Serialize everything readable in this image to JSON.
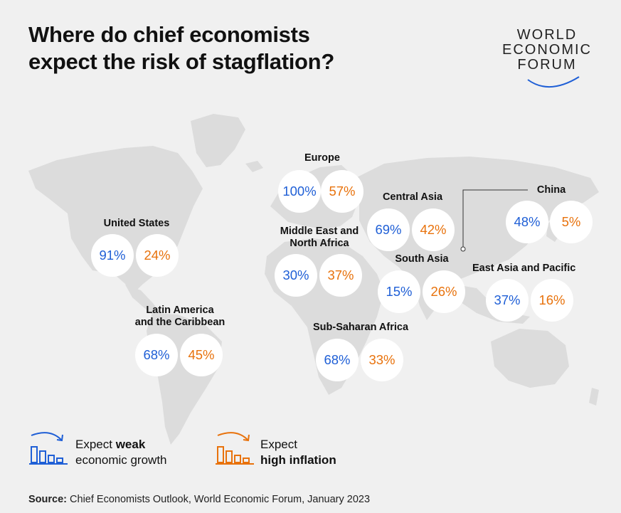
{
  "header": {
    "title_line1": "Where do chief economists",
    "title_line2": "expect the risk of stagflation?"
  },
  "logo": {
    "line1": "WORLD",
    "line2": "ECONOMIC",
    "line3": "FORUM"
  },
  "colors": {
    "growth": "#1f5fd6",
    "inflation": "#e8720c",
    "land": "#dcdcdc",
    "background": "#f0f0f0"
  },
  "regions": [
    {
      "id": "europe",
      "name": "Europe",
      "growth": "100%",
      "inflation": "57%"
    },
    {
      "id": "central-asia",
      "name": "Central Asia",
      "growth": "69%",
      "inflation": "42%"
    },
    {
      "id": "china",
      "name": "China",
      "growth": "48%",
      "inflation": "5%"
    },
    {
      "id": "united-states",
      "name": "United States",
      "growth": "91%",
      "inflation": "24%"
    },
    {
      "id": "mena",
      "name": "Middle East and\nNorth Africa",
      "growth": "30%",
      "inflation": "37%"
    },
    {
      "id": "south-asia",
      "name": "South Asia",
      "growth": "15%",
      "inflation": "26%"
    },
    {
      "id": "east-asia-pacific",
      "name": "East Asia and Pacific",
      "growth": "37%",
      "inflation": "16%"
    },
    {
      "id": "latin-america",
      "name": "Latin America\nand the Caribbean",
      "growth": "68%",
      "inflation": "45%"
    },
    {
      "id": "sub-saharan-africa",
      "name": "Sub-Saharan Africa",
      "growth": "68%",
      "inflation": "33%"
    }
  ],
  "legend": {
    "growth": {
      "prefix": "Expect ",
      "bold": "weak",
      "line2": "economic growth",
      "icon": "falling-bars-arrow-icon"
    },
    "inflation": {
      "line1": "Expect",
      "line2": "high inflation",
      "icon": "falling-bars-arrow-icon"
    }
  },
  "source": {
    "label": "Source:",
    "text": " Chief Economists Outlook, World Economic Forum, January 2023"
  }
}
